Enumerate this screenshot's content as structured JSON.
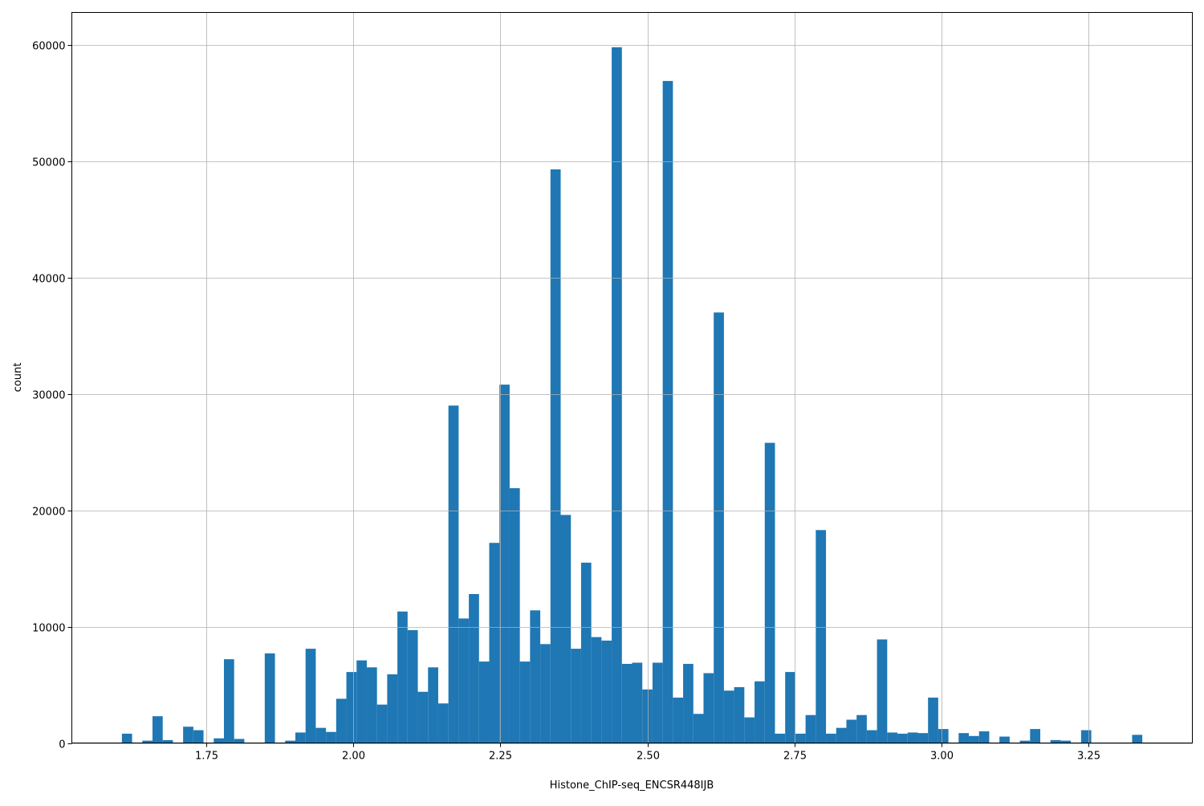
{
  "chart_data": {
    "type": "bar",
    "title": "",
    "xlabel": "Histone_ChIP-seq_ENCSR448IJB",
    "ylabel": "count",
    "bin_range": [
      1.6066,
      3.3415
    ],
    "bins": 100,
    "counts": [
      800,
      0,
      200,
      2300,
      250,
      0,
      1400,
      1100,
      0,
      400,
      7200,
      350,
      0,
      0,
      7700,
      0,
      200,
      900,
      8100,
      1300,
      950,
      3800,
      6100,
      7100,
      6500,
      3300,
      5900,
      11300,
      9700,
      4400,
      6500,
      3400,
      29000,
      10700,
      12800,
      7000,
      17200,
      30800,
      21900,
      7000,
      11400,
      8500,
      49300,
      19600,
      8100,
      15500,
      9100,
      8800,
      59800,
      6800,
      6900,
      4600,
      6900,
      56900,
      3900,
      6800,
      2500,
      6000,
      37000,
      4500,
      4800,
      2200,
      5300,
      25800,
      800,
      6100,
      800,
      2400,
      18300,
      800,
      1300,
      2000,
      2400,
      1100,
      8900,
      900,
      800,
      900,
      850,
      3900,
      1200,
      0,
      850,
      600,
      1000,
      0,
      550,
      0,
      200,
      1200,
      0,
      250,
      200,
      0,
      1100,
      0,
      0,
      0,
      0,
      700
    ],
    "xlim": [
      1.5215,
      3.4266
    ],
    "ylim": [
      0,
      62790
    ],
    "xticks": [
      "1.75",
      "2.00",
      "2.25",
      "2.50",
      "2.75",
      "3.00",
      "3.25"
    ],
    "xtick_values": [
      1.75,
      2.0,
      2.25,
      2.5,
      2.75,
      3.0,
      3.25
    ],
    "yticks": [
      "0",
      "10000",
      "20000",
      "30000",
      "40000",
      "50000",
      "60000"
    ],
    "ytick_values": [
      0,
      10000,
      20000,
      30000,
      40000,
      50000,
      60000
    ],
    "grid": true,
    "bar_color": "#1f77b4",
    "grid_color": "#b0b0b0"
  }
}
